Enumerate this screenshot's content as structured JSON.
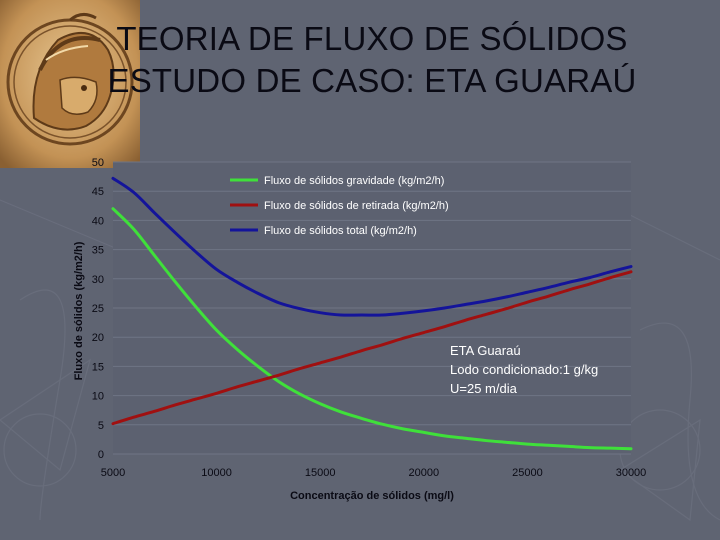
{
  "slide": {
    "title_line1": "TEORIA DE FLUXO DE SÓLIDOS",
    "title_line2": "ESTUDO DE CASO: ETA GUARAÚ"
  },
  "colors": {
    "background": "#5f6472",
    "plot_area": "#5c6170",
    "gravity": "#3fe03a",
    "withdrawal": "#a01010",
    "total": "#14149a"
  },
  "chart_data": {
    "type": "line",
    "xlabel": "Concentração de sólidos (mg/l)",
    "ylabel": "Fluxo de sólidos (kg/m2/h)",
    "xlim": [
      5000,
      30000
    ],
    "ylim": [
      0,
      50
    ],
    "x_ticks": [
      "5000",
      "10000",
      "15000",
      "20000",
      "25000",
      "30000"
    ],
    "y_ticks": [
      "0",
      "5",
      "10",
      "15",
      "20",
      "25",
      "30",
      "35",
      "40",
      "45",
      "50"
    ],
    "grid": true,
    "legend_position": "top-center",
    "x": [
      5000,
      6000,
      7000,
      8000,
      9000,
      10000,
      11000,
      12000,
      13000,
      14000,
      15000,
      16000,
      17000,
      18000,
      19000,
      20000,
      21000,
      22000,
      23000,
      24000,
      25000,
      26000,
      27000,
      28000,
      29000,
      30000
    ],
    "series": [
      {
        "name": "Fluxo de sólidos gravidade (kg/m2/h)",
        "color": "#3fe03a",
        "values": [
          42,
          38.5,
          34,
          29.5,
          25.2,
          21.2,
          17.9,
          15.0,
          12.4,
          10.3,
          8.6,
          7.2,
          6.1,
          5.1,
          4.3,
          3.7,
          3.1,
          2.7,
          2.3,
          2.0,
          1.7,
          1.5,
          1.3,
          1.1,
          1.0,
          0.9
        ]
      },
      {
        "name": "Fluxo de sólidos de retirada (kg/m2/h)",
        "color": "#a01010",
        "values": [
          5.2,
          6.3,
          7.3,
          8.4,
          9.4,
          10.4,
          11.5,
          12.5,
          13.5,
          14.6,
          15.6,
          16.6,
          17.7,
          18.7,
          19.8,
          20.8,
          21.8,
          22.9,
          23.9,
          24.9,
          26.0,
          27.0,
          28.1,
          29.1,
          30.2,
          31.2
        ]
      },
      {
        "name": "Fluxo de sólidos total (kg/m2/h)",
        "color": "#14149a",
        "values": [
          47.2,
          44.8,
          41.3,
          37.9,
          34.6,
          31.6,
          29.4,
          27.5,
          25.9,
          24.9,
          24.2,
          23.8,
          23.8,
          23.8,
          24.1,
          24.5,
          25.0,
          25.6,
          26.2,
          26.9,
          27.7,
          28.5,
          29.4,
          30.2,
          31.2,
          32.1
        ]
      }
    ],
    "annotation": [
      "ETA Guaraú",
      "Lodo condicionado:1 g/kg",
      "U=25 m/dia"
    ]
  }
}
